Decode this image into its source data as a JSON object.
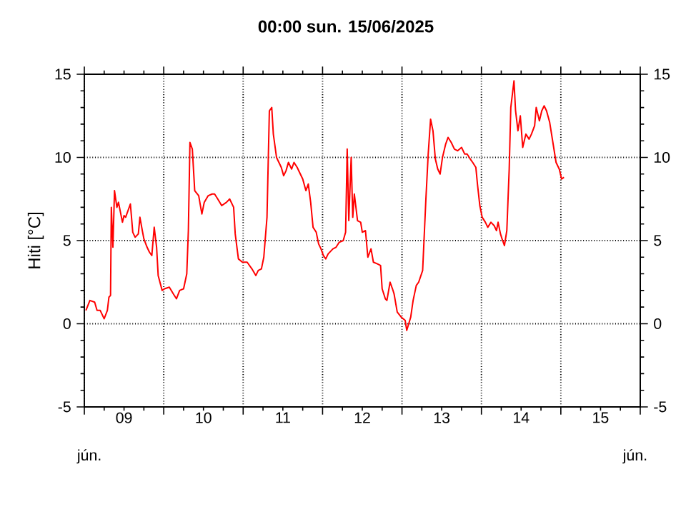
{
  "chart_data": {
    "type": "line",
    "title": "00:00   sun.  15/06/2025",
    "ylabel": "Hiti [°C]",
    "annotations": [
      "jún.",
      "jún."
    ],
    "xlim": [
      9,
      16
    ],
    "xticks": [
      {
        "value": 9,
        "label": null
      },
      {
        "value": 9.5,
        "label": "09"
      },
      {
        "value": 10,
        "label": null
      },
      {
        "value": 10.5,
        "label": "10"
      },
      {
        "value": 11,
        "label": null
      },
      {
        "value": 11.5,
        "label": "11"
      },
      {
        "value": 12,
        "label": null
      },
      {
        "value": 12.5,
        "label": "12"
      },
      {
        "value": 13,
        "label": null
      },
      {
        "value": 13.5,
        "label": "13"
      },
      {
        "value": 14,
        "label": null
      },
      {
        "value": 14.5,
        "label": "14"
      },
      {
        "value": 15,
        "label": null
      },
      {
        "value": 15.5,
        "label": "15"
      },
      {
        "value": 16,
        "label": null
      }
    ],
    "ylim": [
      -5,
      15
    ],
    "yticks": [
      -5,
      0,
      5,
      10,
      15
    ],
    "y2lim": [
      -5,
      15
    ],
    "y2ticks": [
      -5,
      0,
      5,
      10,
      15
    ],
    "grid": true,
    "series": [
      {
        "color": "#ff0000",
        "x": [
          9.02,
          9.07,
          9.13,
          9.16,
          9.2,
          9.25,
          9.29,
          9.31,
          9.33,
          9.34,
          9.36,
          9.38,
          9.41,
          9.43,
          9.48,
          9.5,
          9.52,
          9.58,
          9.61,
          9.64,
          9.68,
          9.7,
          9.73,
          9.75,
          9.79,
          9.82,
          9.85,
          9.88,
          9.91,
          9.93,
          9.98,
          10.01,
          10.07,
          10.12,
          10.16,
          10.2,
          10.25,
          10.29,
          10.31,
          10.33,
          10.36,
          10.39,
          10.44,
          10.48,
          10.51,
          10.56,
          10.61,
          10.64,
          10.68,
          10.73,
          10.79,
          10.83,
          10.88,
          10.9,
          10.94,
          10.99,
          11.05,
          11.11,
          11.16,
          11.19,
          11.23,
          11.26,
          11.3,
          11.33,
          11.36,
          11.38,
          11.42,
          11.45,
          11.48,
          11.51,
          11.54,
          11.57,
          11.61,
          11.64,
          11.68,
          11.71,
          11.75,
          11.79,
          11.82,
          11.85,
          11.88,
          11.92,
          11.95,
          11.98,
          12.01,
          12.04,
          12.07,
          12.13,
          12.17,
          12.21,
          12.26,
          12.29,
          12.31,
          12.33,
          12.36,
          12.38,
          12.4,
          12.44,
          12.48,
          12.5,
          12.54,
          12.57,
          12.61,
          12.64,
          12.69,
          12.73,
          12.75,
          12.79,
          12.81,
          12.85,
          12.88,
          12.9,
          12.94,
          12.99,
          13.04,
          13.06,
          13.11,
          13.14,
          13.18,
          13.21,
          13.26,
          13.3,
          13.33,
          13.36,
          13.39,
          13.42,
          13.45,
          13.48,
          13.51,
          13.55,
          13.58,
          13.62,
          13.66,
          13.7,
          13.75,
          13.79,
          13.82,
          13.86,
          13.89,
          13.93,
          13.95,
          13.98,
          14.01,
          14.05,
          14.08,
          14.12,
          14.16,
          14.19,
          14.21,
          14.24,
          14.26,
          14.29,
          14.32,
          14.35,
          14.37,
          14.41,
          14.43,
          14.46,
          14.49,
          14.52,
          14.56,
          14.6,
          14.63,
          14.67,
          14.69,
          14.73,
          14.76,
          14.79,
          14.82,
          14.86,
          14.89,
          14.92,
          14.94,
          14.98,
          15.01,
          15.04
        ],
        "values": [
          0.8,
          1.4,
          1.3,
          0.8,
          0.8,
          0.3,
          0.8,
          1.6,
          1.7,
          7.0,
          4.6,
          8.0,
          7.0,
          7.3,
          6.1,
          6.5,
          6.4,
          7.2,
          5.5,
          5.2,
          5.4,
          6.4,
          5.6,
          5.1,
          4.6,
          4.3,
          4.1,
          5.8,
          4.6,
          2.9,
          2.0,
          2.1,
          2.2,
          1.8,
          1.5,
          2.0,
          2.1,
          3.0,
          5.6,
          10.9,
          10.5,
          8.0,
          7.7,
          6.6,
          7.3,
          7.7,
          7.8,
          7.8,
          7.5,
          7.1,
          7.3,
          7.5,
          7.0,
          5.4,
          3.9,
          3.7,
          3.7,
          3.3,
          2.9,
          3.2,
          3.3,
          4.0,
          6.4,
          12.8,
          13.0,
          11.4,
          10.0,
          9.7,
          9.4,
          8.9,
          9.2,
          9.7,
          9.3,
          9.7,
          9.4,
          9.1,
          8.7,
          8.0,
          8.4,
          7.3,
          5.8,
          5.5,
          4.8,
          4.5,
          4.1,
          3.9,
          4.2,
          4.5,
          4.6,
          4.9,
          5.0,
          5.5,
          10.5,
          6.2,
          10.0,
          6.4,
          7.8,
          6.2,
          6.1,
          5.5,
          5.6,
          4.0,
          4.5,
          3.7,
          3.6,
          3.5,
          2.1,
          1.5,
          1.4,
          2.5,
          2.1,
          1.8,
          0.7,
          0.4,
          0.2,
          -0.4,
          0.4,
          1.4,
          2.3,
          2.5,
          3.2,
          7.4,
          10.2,
          12.3,
          11.6,
          9.9,
          9.3,
          9.0,
          10.0,
          10.8,
          11.2,
          10.9,
          10.5,
          10.4,
          10.6,
          10.2,
          10.2,
          9.9,
          9.7,
          9.4,
          8.4,
          7.1,
          6.4,
          6.1,
          5.8,
          6.1,
          5.9,
          5.6,
          6.1,
          5.4,
          5.1,
          4.7,
          5.6,
          9.3,
          13.0,
          14.6,
          12.8,
          11.6,
          12.5,
          10.6,
          11.4,
          11.1,
          11.4,
          11.9,
          13.0,
          12.2,
          12.8,
          13.1,
          12.8,
          12.1,
          11.2,
          10.3,
          9.7,
          9.3,
          8.7,
          8.8
        ]
      }
    ]
  }
}
